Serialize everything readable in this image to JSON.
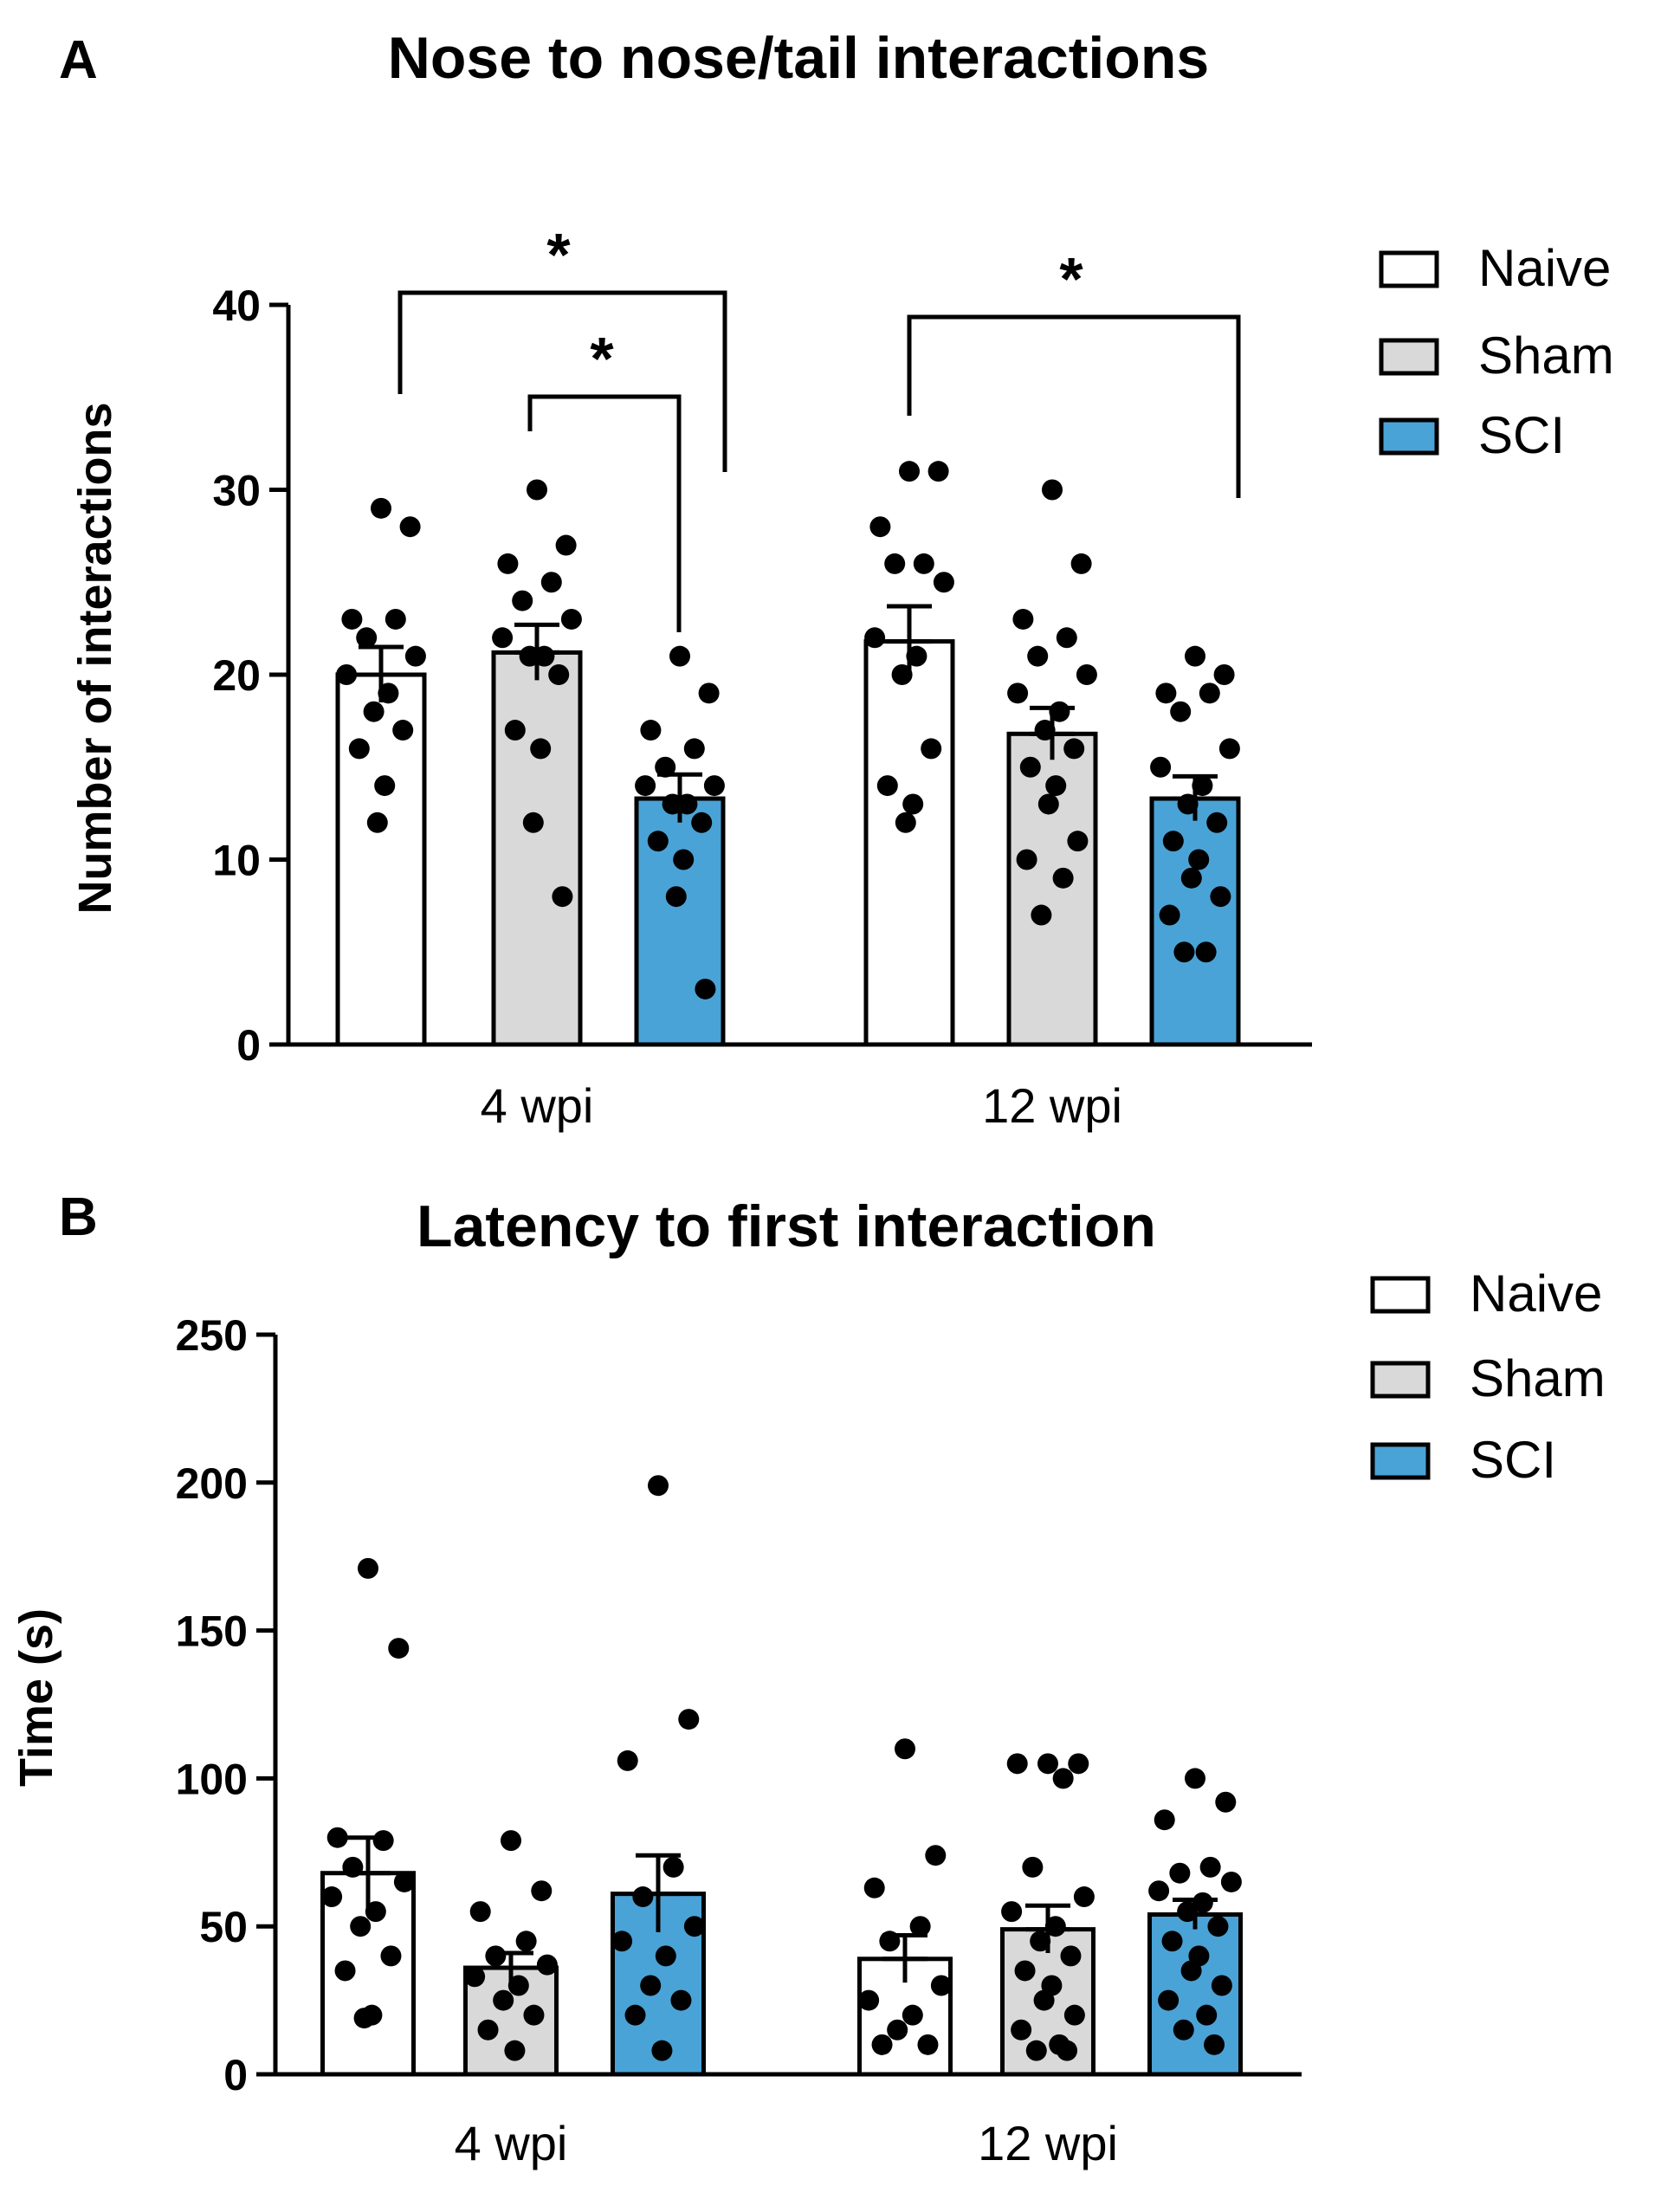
{
  "chart_data": [
    {
      "panel": "A",
      "type": "bar",
      "title": "Nose to nose/tail interactions",
      "xlabel": "",
      "ylabel": "Number of interactions",
      "ylim": [
        0,
        40
      ],
      "yticks": [
        0,
        10,
        20,
        30,
        40
      ],
      "grid": false,
      "legend_position": "top-right",
      "categories": [
        "4 wpi",
        "12 wpi"
      ],
      "series": [
        {
          "name": "Naive",
          "color": "#ffffff",
          "values": [
            20,
            21.8
          ],
          "sem": [
            1.5,
            1.9
          ],
          "points": [
            [
              29,
              28,
              23,
              23,
              22,
              21,
              20,
              19,
              18,
              17,
              16,
              14,
              12
            ],
            [
              31,
              31,
              28,
              26,
              26,
              25,
              22,
              21,
              20,
              16,
              14,
              13,
              12
            ]
          ]
        },
        {
          "name": "Sham",
          "color": "#d9d9d9",
          "values": [
            21.2,
            16.8
          ],
          "sem": [
            1.5,
            1.4
          ],
          "points": [
            [
              30,
              27,
              26,
              25,
              24,
              23,
              22,
              21,
              21,
              20,
              17,
              16,
              12,
              8
            ],
            [
              30,
              26,
              23,
              22,
              21,
              20,
              19,
              18,
              17,
              16,
              15,
              14,
              13,
              11,
              10,
              9,
              7
            ]
          ]
        },
        {
          "name": "SCI",
          "color": "#4aa3d6",
          "values": [
            13.3,
            13.3
          ],
          "sem": [
            1.3,
            1.2
          ],
          "points": [
            [
              21,
              19,
              17,
              16,
              15,
              14,
              14,
              13,
              13,
              12,
              11,
              10,
              8,
              3
            ],
            [
              21,
              20,
              19,
              19,
              18,
              16,
              15,
              14,
              13,
              12,
              11,
              10,
              9,
              8,
              7,
              5,
              5
            ]
          ]
        }
      ],
      "annotations": [
        {
          "text": "*",
          "between": [
            "4 wpi|Naive",
            "4 wpi|SCI"
          ]
        },
        {
          "text": "*",
          "between": [
            "4 wpi|Sham",
            "4 wpi|SCI"
          ]
        },
        {
          "text": "*",
          "between": [
            "12 wpi|Naive",
            "12 wpi|SCI"
          ]
        }
      ]
    },
    {
      "panel": "B",
      "type": "bar",
      "title": "Latency to first interaction",
      "xlabel": "",
      "ylabel": "Time (s)",
      "ylim": [
        0,
        250
      ],
      "yticks": [
        0,
        50,
        100,
        150,
        200,
        250
      ],
      "grid": false,
      "legend_position": "top-right",
      "categories": [
        "4 wpi",
        "12 wpi"
      ],
      "series": [
        {
          "name": "Naive",
          "color": "#ffffff",
          "values": [
            68,
            39
          ],
          "sem": [
            12,
            8
          ],
          "points": [
            [
              171,
              144,
              80,
              79,
              70,
              65,
              60,
              55,
              50,
              40,
              35,
              20,
              19
            ],
            [
              110,
              74,
              63,
              50,
              45,
              30,
              25,
              20,
              15,
              10,
              10
            ]
          ]
        },
        {
          "name": "Sham",
          "color": "#d9d9d9",
          "values": [
            36,
            49
          ],
          "sem": [
            5,
            8
          ],
          "points": [
            [
              79,
              62,
              55,
              45,
              40,
              37,
              33,
              30,
              25,
              20,
              15,
              8
            ],
            [
              105,
              105,
              105,
              100,
              70,
              60,
              55,
              50,
              45,
              40,
              35,
              30,
              25,
              20,
              15,
              10,
              8,
              8
            ]
          ]
        },
        {
          "name": "SCI",
          "color": "#4aa3d6",
          "values": [
            61,
            54
          ],
          "sem": [
            13,
            5
          ],
          "points": [
            [
              199,
              120,
              106,
              70,
              60,
              50,
              45,
              40,
              30,
              25,
              20,
              8
            ],
            [
              100,
              92,
              86,
              70,
              68,
              65,
              62,
              58,
              55,
              50,
              45,
              40,
              35,
              30,
              25,
              20,
              15,
              10
            ]
          ]
        }
      ],
      "annotations": []
    }
  ]
}
